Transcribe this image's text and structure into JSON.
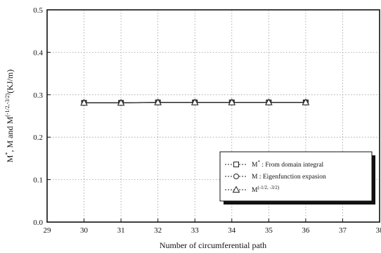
{
  "chart_data": {
    "type": "line",
    "xlabel": "Number of circumferential path",
    "ylabel": "M*, M and M(-1/2,-3/2)(KJ/m)",
    "xlim": [
      29,
      38
    ],
    "ylim": [
      0.0,
      0.5
    ],
    "x_ticks": [
      29,
      30,
      31,
      32,
      33,
      34,
      35,
      36,
      37,
      38
    ],
    "y_ticks": [
      "0.0",
      "0.1",
      "0.2",
      "0.3",
      "0.4",
      "0.5"
    ],
    "grid": true,
    "legend_position": "bottom-right",
    "x": [
      30,
      31,
      32,
      33,
      34,
      35,
      36
    ],
    "series": [
      {
        "name": "M* : From domain integral",
        "marker": "square",
        "values": [
          0.281,
          0.281,
          0.282,
          0.282,
          0.282,
          0.282,
          0.282
        ]
      },
      {
        "name": "M : Eigenfunction expasion",
        "marker": "circle",
        "values": [
          0.281,
          0.281,
          0.282,
          0.282,
          0.282,
          0.282,
          0.282
        ]
      },
      {
        "name": "M(-1/2,-3/2)",
        "marker": "triangle",
        "values": [
          0.281,
          0.281,
          0.282,
          0.282,
          0.282,
          0.282,
          0.282
        ]
      }
    ],
    "legend": {
      "entries": [
        {
          "main": "M",
          "sup": "*",
          "rest": " : From domain integral"
        },
        {
          "main": "M",
          "sup": "",
          "rest": " : Eigenfunction expasion"
        },
        {
          "main": "M",
          "sup": "(-1/2, -3/2)",
          "rest": ""
        }
      ]
    },
    "colors": {
      "line": "#222222",
      "grid": "#9a9a9a"
    }
  }
}
